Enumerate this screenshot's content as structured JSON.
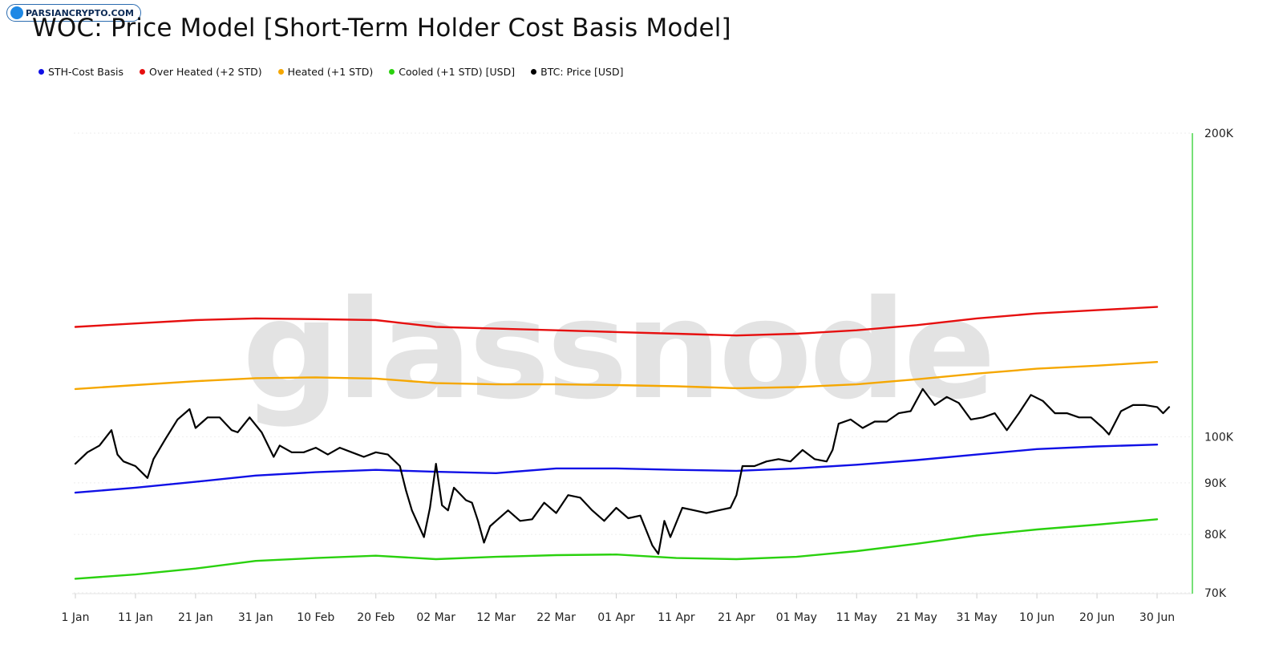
{
  "badge": {
    "text": "PARSIANCRYPTO.COM"
  },
  "watermark": "glassnode",
  "colors": {
    "sth": "#1010e6",
    "overheated": "#e60f0f",
    "heated": "#f5a700",
    "cooled": "#2ad10e",
    "price": "#000000",
    "axis_line": "#49d64a",
    "grid": "#eeeeee"
  },
  "chart_data": {
    "type": "line",
    "title": "WOC: Price Model [Short-Term Holder Cost Basis Model]",
    "legend": [
      {
        "key": "sth",
        "label": "STH-Cost Basis"
      },
      {
        "key": "overheated",
        "label": "Over Heated (+2 STD)"
      },
      {
        "key": "heated",
        "label": "Heated (+1 STD)"
      },
      {
        "key": "cooled",
        "label": "Cooled (+1 STD) [USD]"
      },
      {
        "key": "price",
        "label": "BTC: Price [USD]"
      }
    ],
    "legend_position": "top-left",
    "y_scale": "log",
    "ylim": [
      70000,
      200000
    ],
    "y_ticks": [
      {
        "value": 70000,
        "label": "70K"
      },
      {
        "value": 80000,
        "label": "80K"
      },
      {
        "value": 90000,
        "label": "90K"
      },
      {
        "value": 100000,
        "label": "100K"
      },
      {
        "value": 200000,
        "label": "200K"
      }
    ],
    "y_axis_side": "right",
    "xlim": [
      "2025-01-01",
      "2025-07-03"
    ],
    "x_ticks": [
      {
        "date": "2025-01-01",
        "label": "1 Jan"
      },
      {
        "date": "2025-01-11",
        "label": "11 Jan"
      },
      {
        "date": "2025-01-21",
        "label": "21 Jan"
      },
      {
        "date": "2025-01-31",
        "label": "31 Jan"
      },
      {
        "date": "2025-02-10",
        "label": "10 Feb"
      },
      {
        "date": "2025-02-20",
        "label": "20 Feb"
      },
      {
        "date": "2025-03-02",
        "label": "02 Mar"
      },
      {
        "date": "2025-03-12",
        "label": "12 Mar"
      },
      {
        "date": "2025-03-22",
        "label": "22 Mar"
      },
      {
        "date": "2025-04-01",
        "label": "01 Apr"
      },
      {
        "date": "2025-04-11",
        "label": "11 Apr"
      },
      {
        "date": "2025-04-21",
        "label": "21 Apr"
      },
      {
        "date": "2025-05-01",
        "label": "01 May"
      },
      {
        "date": "2025-05-11",
        "label": "11 May"
      },
      {
        "date": "2025-05-21",
        "label": "21 May"
      },
      {
        "date": "2025-05-31",
        "label": "31 May"
      },
      {
        "date": "2025-06-10",
        "label": "10 Jun"
      },
      {
        "date": "2025-06-20",
        "label": "20 Jun"
      },
      {
        "date": "2025-06-30",
        "label": "30 Jun"
      }
    ],
    "series": [
      {
        "key": "overheated",
        "name": "Over Heated (+2 STD)",
        "points": [
          [
            "2025-01-01",
            128500
          ],
          [
            "2025-01-11",
            129500
          ],
          [
            "2025-01-21",
            130500
          ],
          [
            "2025-01-31",
            131000
          ],
          [
            "2025-02-10",
            130800
          ],
          [
            "2025-02-20",
            130500
          ],
          [
            "2025-03-02",
            128500
          ],
          [
            "2025-03-12",
            128000
          ],
          [
            "2025-03-22",
            127500
          ],
          [
            "2025-04-01",
            127000
          ],
          [
            "2025-04-11",
            126500
          ],
          [
            "2025-04-21",
            126000
          ],
          [
            "2025-05-01",
            126500
          ],
          [
            "2025-05-11",
            127500
          ],
          [
            "2025-05-21",
            129000
          ],
          [
            "2025-05-31",
            131000
          ],
          [
            "2025-06-10",
            132500
          ],
          [
            "2025-06-20",
            133500
          ],
          [
            "2025-06-30",
            134500
          ]
        ]
      },
      {
        "key": "heated",
        "name": "Heated (+1 STD)",
        "points": [
          [
            "2025-01-01",
            111500
          ],
          [
            "2025-01-11",
            112500
          ],
          [
            "2025-01-21",
            113500
          ],
          [
            "2025-01-31",
            114300
          ],
          [
            "2025-02-10",
            114500
          ],
          [
            "2025-02-20",
            114200
          ],
          [
            "2025-03-02",
            113000
          ],
          [
            "2025-03-12",
            112700
          ],
          [
            "2025-03-22",
            112700
          ],
          [
            "2025-04-01",
            112500
          ],
          [
            "2025-04-11",
            112200
          ],
          [
            "2025-04-21",
            111700
          ],
          [
            "2025-05-01",
            112000
          ],
          [
            "2025-05-11",
            112700
          ],
          [
            "2025-05-21",
            114000
          ],
          [
            "2025-05-31",
            115500
          ],
          [
            "2025-06-10",
            116800
          ],
          [
            "2025-06-20",
            117600
          ],
          [
            "2025-06-30",
            118600
          ]
        ]
      },
      {
        "key": "sth",
        "name": "STH-Cost Basis",
        "points": [
          [
            "2025-01-01",
            88000
          ],
          [
            "2025-01-11",
            89000
          ],
          [
            "2025-01-21",
            90200
          ],
          [
            "2025-01-31",
            91500
          ],
          [
            "2025-02-10",
            92200
          ],
          [
            "2025-02-20",
            92700
          ],
          [
            "2025-03-02",
            92300
          ],
          [
            "2025-03-12",
            92000
          ],
          [
            "2025-03-22",
            93000
          ],
          [
            "2025-04-01",
            93000
          ],
          [
            "2025-04-11",
            92700
          ],
          [
            "2025-04-21",
            92500
          ],
          [
            "2025-05-01",
            93000
          ],
          [
            "2025-05-11",
            93800
          ],
          [
            "2025-05-21",
            94800
          ],
          [
            "2025-05-31",
            96000
          ],
          [
            "2025-06-10",
            97200
          ],
          [
            "2025-06-20",
            97800
          ],
          [
            "2025-06-30",
            98200
          ]
        ]
      },
      {
        "key": "cooled",
        "name": "Cooled (+1 STD) [USD]",
        "points": [
          [
            "2025-01-01",
            72300
          ],
          [
            "2025-01-11",
            73000
          ],
          [
            "2025-01-21",
            74000
          ],
          [
            "2025-01-31",
            75300
          ],
          [
            "2025-02-10",
            75800
          ],
          [
            "2025-02-20",
            76200
          ],
          [
            "2025-03-02",
            75600
          ],
          [
            "2025-03-12",
            76000
          ],
          [
            "2025-03-22",
            76300
          ],
          [
            "2025-04-01",
            76400
          ],
          [
            "2025-04-11",
            75800
          ],
          [
            "2025-04-21",
            75600
          ],
          [
            "2025-05-01",
            76000
          ],
          [
            "2025-05-11",
            77000
          ],
          [
            "2025-05-21",
            78300
          ],
          [
            "2025-05-31",
            79800
          ],
          [
            "2025-06-10",
            80900
          ],
          [
            "2025-06-20",
            81800
          ],
          [
            "2025-06-30",
            82800
          ]
        ]
      },
      {
        "key": "price",
        "name": "BTC: Price [USD]",
        "points": [
          [
            "2025-01-01",
            94000
          ],
          [
            "2025-01-03",
            96500
          ],
          [
            "2025-01-05",
            98000
          ],
          [
            "2025-01-07",
            101500
          ],
          [
            "2025-01-08",
            96000
          ],
          [
            "2025-01-09",
            94500
          ],
          [
            "2025-01-11",
            93500
          ],
          [
            "2025-01-13",
            91000
          ],
          [
            "2025-01-14",
            95000
          ],
          [
            "2025-01-16",
            99500
          ],
          [
            "2025-01-18",
            104000
          ],
          [
            "2025-01-20",
            106500
          ],
          [
            "2025-01-21",
            102000
          ],
          [
            "2025-01-23",
            104500
          ],
          [
            "2025-01-25",
            104500
          ],
          [
            "2025-01-27",
            101500
          ],
          [
            "2025-01-28",
            101000
          ],
          [
            "2025-01-30",
            104500
          ],
          [
            "2025-02-01",
            101000
          ],
          [
            "2025-02-03",
            95500
          ],
          [
            "2025-02-04",
            98000
          ],
          [
            "2025-02-06",
            96500
          ],
          [
            "2025-02-08",
            96500
          ],
          [
            "2025-02-10",
            97500
          ],
          [
            "2025-02-12",
            96000
          ],
          [
            "2025-02-14",
            97500
          ],
          [
            "2025-02-16",
            96500
          ],
          [
            "2025-02-18",
            95500
          ],
          [
            "2025-02-20",
            96500
          ],
          [
            "2025-02-22",
            96000
          ],
          [
            "2025-02-24",
            93500
          ],
          [
            "2025-02-25",
            88500
          ],
          [
            "2025-02-26",
            84500
          ],
          [
            "2025-02-28",
            79500
          ],
          [
            "2025-03-01",
            85000
          ],
          [
            "2025-03-02",
            94000
          ],
          [
            "2025-03-03",
            85500
          ],
          [
            "2025-03-04",
            84500
          ],
          [
            "2025-03-05",
            89000
          ],
          [
            "2025-03-07",
            86500
          ],
          [
            "2025-03-08",
            86000
          ],
          [
            "2025-03-09",
            82500
          ],
          [
            "2025-03-10",
            78500
          ],
          [
            "2025-03-11",
            81500
          ],
          [
            "2025-03-12",
            82500
          ],
          [
            "2025-03-14",
            84500
          ],
          [
            "2025-03-16",
            82500
          ],
          [
            "2025-03-18",
            82800
          ],
          [
            "2025-03-20",
            86000
          ],
          [
            "2025-03-22",
            84000
          ],
          [
            "2025-03-24",
            87500
          ],
          [
            "2025-03-26",
            87000
          ],
          [
            "2025-03-28",
            84500
          ],
          [
            "2025-03-30",
            82500
          ],
          [
            "2025-04-01",
            85000
          ],
          [
            "2025-04-03",
            83000
          ],
          [
            "2025-04-05",
            83500
          ],
          [
            "2025-04-07",
            78000
          ],
          [
            "2025-04-08",
            76500
          ],
          [
            "2025-04-09",
            82500
          ],
          [
            "2025-04-10",
            79500
          ],
          [
            "2025-04-12",
            85000
          ],
          [
            "2025-04-14",
            84500
          ],
          [
            "2025-04-16",
            84000
          ],
          [
            "2025-04-18",
            84500
          ],
          [
            "2025-04-20",
            85000
          ],
          [
            "2025-04-21",
            87500
          ],
          [
            "2025-04-22",
            93500
          ],
          [
            "2025-04-24",
            93500
          ],
          [
            "2025-04-26",
            94500
          ],
          [
            "2025-04-28",
            95000
          ],
          [
            "2025-04-30",
            94500
          ],
          [
            "2025-05-02",
            97000
          ],
          [
            "2025-05-04",
            95000
          ],
          [
            "2025-05-06",
            94500
          ],
          [
            "2025-05-07",
            97000
          ],
          [
            "2025-05-08",
            103000
          ],
          [
            "2025-05-10",
            104000
          ],
          [
            "2025-05-12",
            102000
          ],
          [
            "2025-05-14",
            103500
          ],
          [
            "2025-05-16",
            103500
          ],
          [
            "2025-05-18",
            105500
          ],
          [
            "2025-05-20",
            106000
          ],
          [
            "2025-05-22",
            111500
          ],
          [
            "2025-05-24",
            107500
          ],
          [
            "2025-05-26",
            109500
          ],
          [
            "2025-05-28",
            108000
          ],
          [
            "2025-05-30",
            104000
          ],
          [
            "2025-06-01",
            104500
          ],
          [
            "2025-06-03",
            105500
          ],
          [
            "2025-06-05",
            101500
          ],
          [
            "2025-06-07",
            105500
          ],
          [
            "2025-06-09",
            110000
          ],
          [
            "2025-06-11",
            108500
          ],
          [
            "2025-06-13",
            105500
          ],
          [
            "2025-06-15",
            105500
          ],
          [
            "2025-06-17",
            104500
          ],
          [
            "2025-06-19",
            104500
          ],
          [
            "2025-06-21",
            102000
          ],
          [
            "2025-06-22",
            100500
          ],
          [
            "2025-06-24",
            106000
          ],
          [
            "2025-06-26",
            107500
          ],
          [
            "2025-06-28",
            107500
          ],
          [
            "2025-06-30",
            107000
          ],
          [
            "2025-07-01",
            105500
          ],
          [
            "2025-07-02",
            107000
          ]
        ]
      }
    ]
  }
}
